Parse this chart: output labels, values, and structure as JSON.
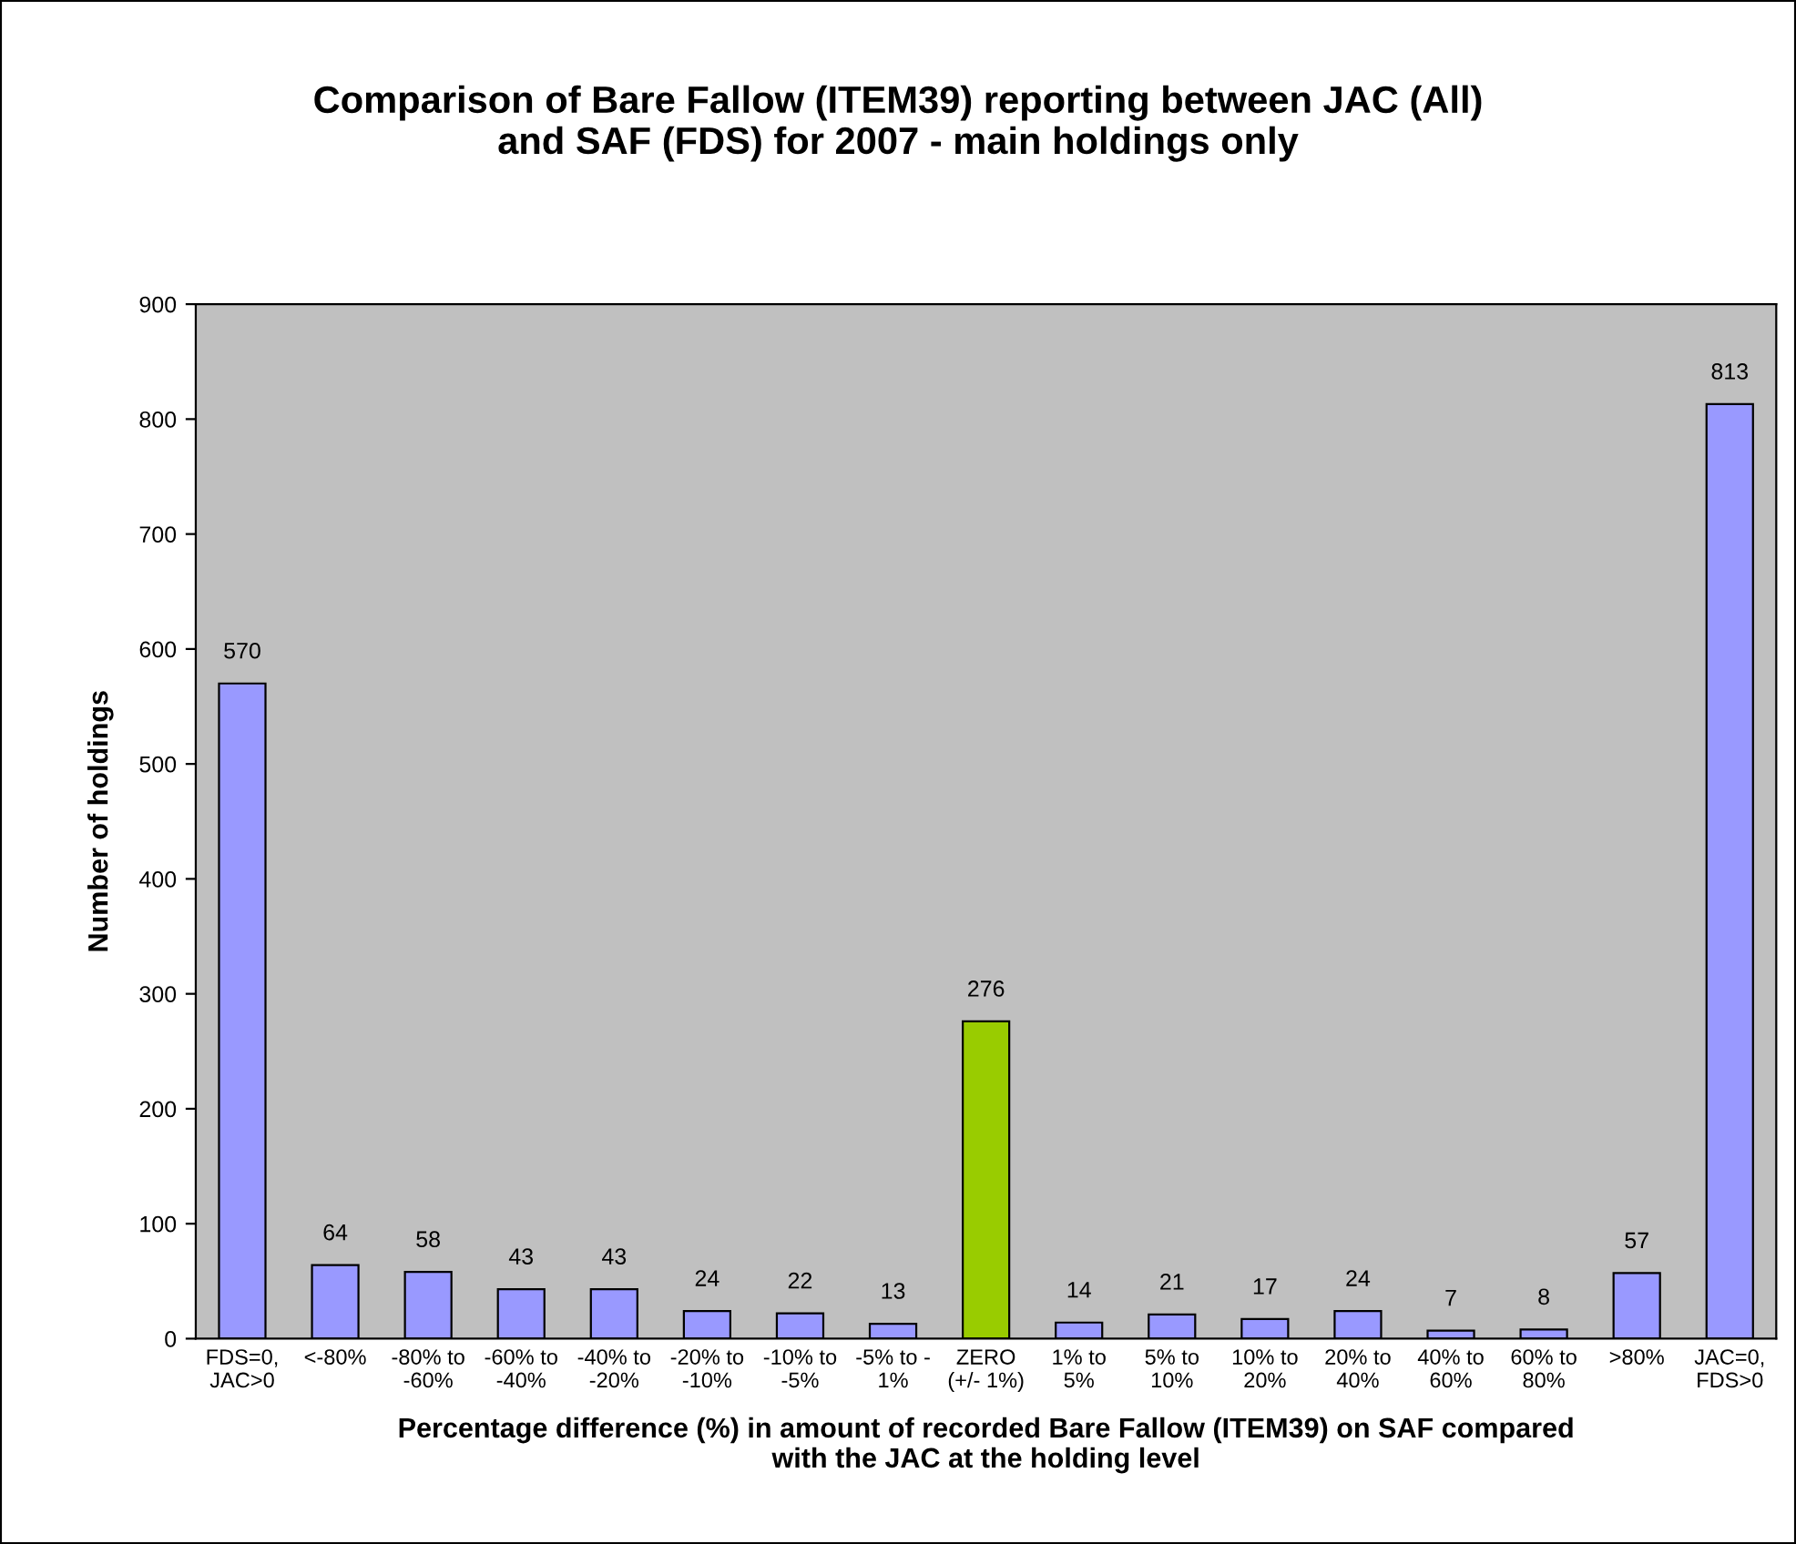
{
  "chart_data": {
    "type": "bar",
    "title": "Comparison of Bare Fallow (ITEM39) reporting between JAC (All)\nand SAF (FDS) for 2007 - main holdings only",
    "xlabel": "Percentage difference (%) in amount of recorded Bare Fallow (ITEM39) on SAF compared\nwith the JAC at the holding level",
    "ylabel": "Number of holdings",
    "categories": [
      "FDS=0,\nJAC>0",
      "<-80%",
      "-80% to\n-60%",
      "-60% to\n-40%",
      "-40% to\n-20%",
      "-20% to\n-10%",
      "-10% to\n-5%",
      "-5% to -\n1%",
      "ZERO\n(+/- 1%)",
      "1% to\n5%",
      "5% to\n10%",
      "10% to\n20%",
      "20% to\n40%",
      "40% to\n60%",
      "60% to\n80%",
      ">80%",
      "JAC=0,\nFDS>0"
    ],
    "values": [
      570,
      64,
      58,
      43,
      43,
      24,
      22,
      13,
      276,
      14,
      21,
      17,
      24,
      7,
      8,
      57,
      813
    ],
    "colors": [
      "#9999ff",
      "#9999ff",
      "#9999ff",
      "#9999ff",
      "#9999ff",
      "#9999ff",
      "#9999ff",
      "#9999ff",
      "#99cc00",
      "#9999ff",
      "#9999ff",
      "#9999ff",
      "#9999ff",
      "#9999ff",
      "#9999ff",
      "#9999ff",
      "#9999ff"
    ],
    "ylim": [
      0,
      900
    ],
    "yticks": [
      0,
      100,
      200,
      300,
      400,
      500,
      600,
      700,
      800,
      900
    ],
    "data_labels": true,
    "grid": false,
    "legend": false
  }
}
